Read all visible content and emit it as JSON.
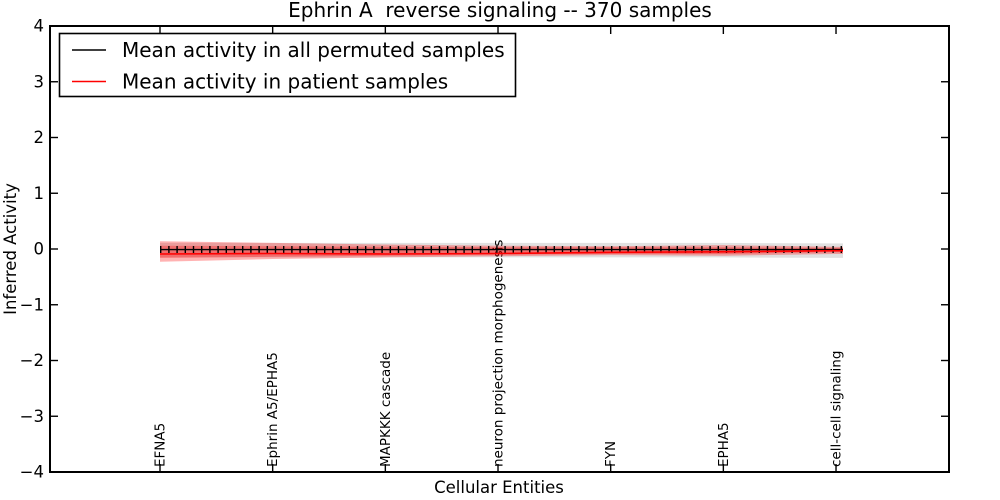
{
  "chart_data": {
    "type": "line",
    "title": "Ephrin A  reverse signaling -- 370 samples",
    "xlabel": "Cellular Entities",
    "ylabel": "Inferred Activity",
    "ylim": [
      -4,
      4
    ],
    "xlim_px_note": "7 categorical ticks evenly spaced",
    "grid": false,
    "legend_position": "upper left",
    "y_ticklabels": [
      "4",
      "3",
      "2",
      "1",
      "0",
      "−1",
      "−2",
      "−3",
      "−4"
    ],
    "y_tickvalues": [
      4,
      3,
      2,
      1,
      0,
      -1,
      -2,
      -3,
      -4
    ],
    "categories": [
      "EFNA5",
      "Ephrin A5/EPHA5",
      "MAPKKK cascade",
      "neuron projection morphogenesis",
      "FYN",
      "EPHA5",
      "cell-cell signaling"
    ],
    "series": [
      {
        "name": "Mean activity in all permuted samples",
        "color": "#000000",
        "values": [
          -0.01,
          -0.01,
          -0.01,
          -0.01,
          -0.01,
          -0.01,
          -0.01
        ],
        "band_upper": [
          0.11,
          0.11,
          0.11,
          0.11,
          0.11,
          0.11,
          0.1
        ],
        "band_lower": [
          -0.15,
          -0.15,
          -0.15,
          -0.15,
          -0.15,
          -0.15,
          -0.16
        ],
        "band_color": "#000000",
        "band_opacity": 0.12
      },
      {
        "name": "Mean activity in patient samples",
        "color": "#ff0000",
        "values": [
          -0.09,
          -0.08,
          -0.09,
          -0.08,
          -0.06,
          -0.05,
          -0.03
        ],
        "band_outer_upper": [
          0.14,
          0.11,
          0.08,
          0.06,
          0.05,
          0.07,
          0.04
        ],
        "band_outer_lower": [
          -0.23,
          -0.18,
          -0.15,
          -0.13,
          -0.11,
          -0.12,
          -0.09
        ],
        "band_inner_upper": [
          0.06,
          0.05,
          0.04,
          0.03,
          0.03,
          0.03,
          0.02
        ],
        "band_inner_lower": [
          -0.16,
          -0.14,
          -0.12,
          -0.1,
          -0.09,
          -0.09,
          -0.06
        ],
        "band_color": "#ff0000",
        "band_outer_opacity": 0.3,
        "band_inner_opacity": 0.3
      }
    ]
  }
}
